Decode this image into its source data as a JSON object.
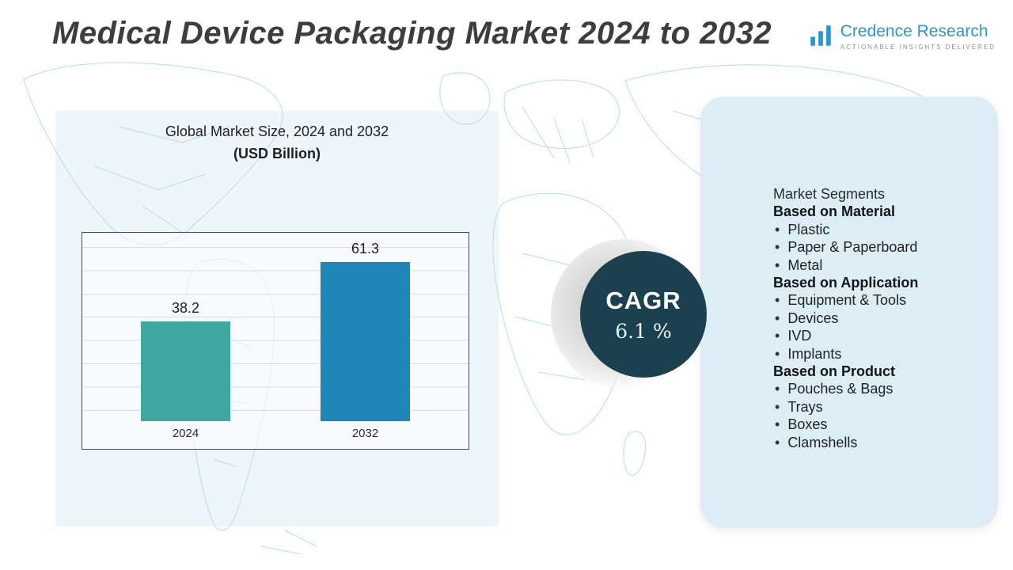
{
  "header": {
    "title": "Medical Device Packaging Market 2024 to 2032",
    "logo": {
      "name": "Credence Research",
      "tagline": "ACTIONABLE INSIGHTS DELIVERED"
    }
  },
  "chart": {
    "heading_line1": "Global Market Size, 2024 and 2032",
    "heading_line2": "(USD Billion)"
  },
  "chart_data": {
    "type": "bar",
    "title": "Global Market Size, 2024 and 2032 (USD Billion)",
    "categories": [
      "2024",
      "2032"
    ],
    "values": [
      38.2,
      61.3
    ],
    "xlabel": "",
    "ylabel": "USD Billion",
    "ylim": [
      0,
      70
    ],
    "grid": true,
    "legend": "none",
    "colors": [
      "#3fa7a0",
      "#1e87b7"
    ]
  },
  "cagr": {
    "label": "CAGR",
    "value": "6.1 %"
  },
  "segments": {
    "title": "Market Segments",
    "sections": [
      {
        "heading": "Based on Material",
        "items": [
          "Plastic",
          "Paper & Paperboard",
          "Metal"
        ]
      },
      {
        "heading": "Based on Application",
        "items": [
          "Equipment & Tools",
          "Devices",
          "IVD",
          "Implants"
        ]
      },
      {
        "heading": "Based on Product",
        "items": [
          "Pouches & Bags",
          "Trays",
          "Boxes",
          "Clamshells"
        ]
      }
    ]
  },
  "colors": {
    "accent_blue": "#2797d3",
    "dark_circle": "#1b4150",
    "panel_blue": "#dcedf5",
    "map_line": "#b5dce8"
  }
}
